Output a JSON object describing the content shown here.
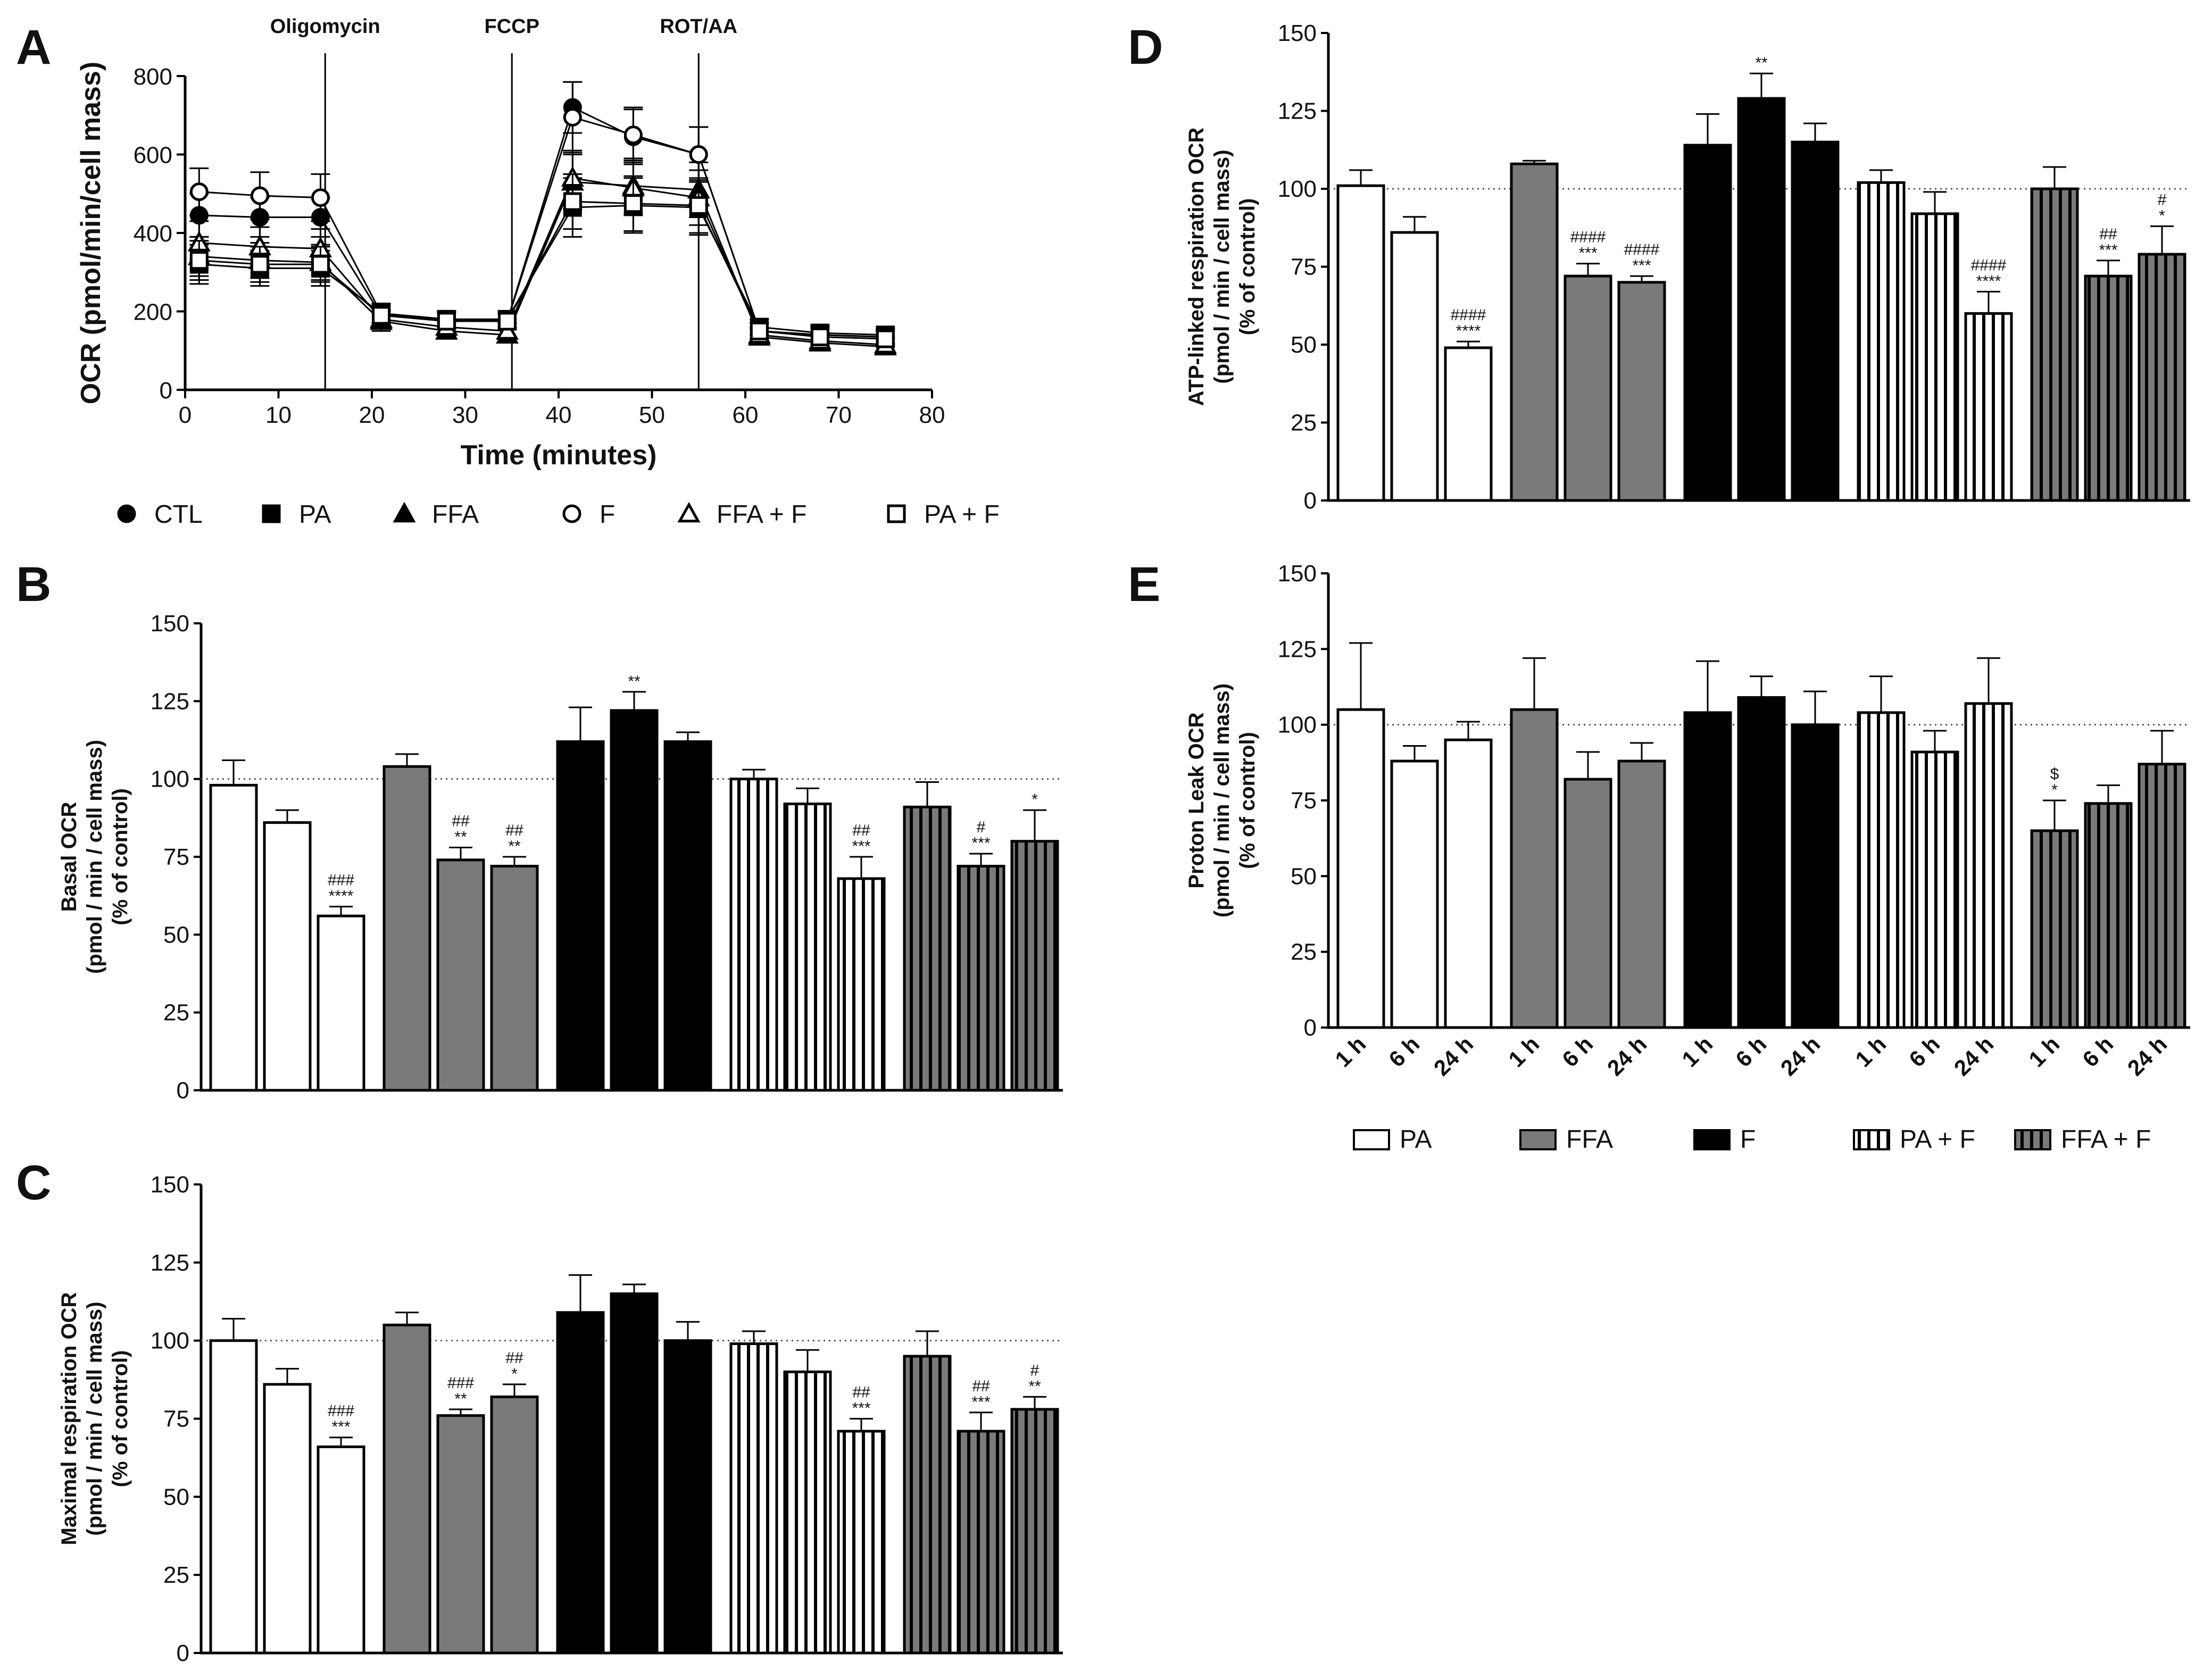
{
  "panel_letters": {
    "A": "A",
    "B": "B",
    "C": "C",
    "D": "D",
    "E": "E"
  },
  "colors": {
    "white": "#ffffff",
    "gray": "#7a7a7a",
    "black": "#000000",
    "axis": "#000000"
  },
  "chart_data": [
    {
      "id": "A",
      "type": "line",
      "xlabel": "Time (minutes)",
      "ylabel": "OCR (pmol/min/cell mass)",
      "xlim": [
        0,
        80
      ],
      "ylim": [
        0,
        800
      ],
      "xticks": [
        0,
        10,
        20,
        30,
        40,
        50,
        60,
        70,
        80
      ],
      "yticks": [
        0,
        200,
        400,
        600,
        800
      ],
      "injections": [
        {
          "label": "Oligomycin",
          "x": 15
        },
        {
          "label": "FCCP",
          "x": 35
        },
        {
          "label": "ROT/AA",
          "x": 55
        }
      ],
      "x": [
        1.5,
        8,
        14.5,
        21,
        28,
        34.5,
        41.5,
        48,
        55,
        61.5,
        68,
        75
      ],
      "series": [
        {
          "name": "CTL",
          "marker": "circle",
          "fill": "filled",
          "values": [
            445,
            440,
            440,
            190,
            180,
            175,
            720,
            645,
            600,
            150,
            140,
            135
          ],
          "err": [
            55,
            50,
            50,
            25,
            20,
            20,
            65,
            70,
            70,
            20,
            20,
            20
          ]
        },
        {
          "name": "PA",
          "marker": "square",
          "fill": "filled",
          "values": [
            320,
            310,
            310,
            195,
            180,
            180,
            465,
            470,
            465,
            160,
            145,
            140
          ],
          "err": [
            50,
            45,
            45,
            25,
            20,
            20,
            75,
            70,
            70,
            20,
            20,
            20
          ]
        },
        {
          "name": "FFA",
          "marker": "triangle",
          "fill": "filled",
          "values": [
            340,
            330,
            325,
            175,
            150,
            140,
            530,
            520,
            510,
            135,
            120,
            110
          ],
          "err": [
            50,
            45,
            45,
            25,
            20,
            20,
            70,
            70,
            70,
            20,
            20,
            20
          ]
        },
        {
          "name": "F",
          "marker": "circle",
          "fill": "open",
          "values": [
            505,
            495,
            490,
            195,
            180,
            175,
            695,
            650,
            600,
            150,
            140,
            135
          ],
          "err": [
            60,
            60,
            60,
            25,
            20,
            20,
            90,
            70,
            70,
            20,
            20,
            20
          ]
        },
        {
          "name": "FFA + F",
          "marker": "triangle",
          "fill": "open",
          "values": [
            375,
            365,
            360,
            180,
            160,
            150,
            540,
            515,
            490,
            140,
            125,
            115
          ],
          "err": [
            55,
            50,
            50,
            25,
            20,
            20,
            70,
            70,
            70,
            20,
            20,
            20
          ]
        },
        {
          "name": "PA + F",
          "marker": "square",
          "fill": "open",
          "values": [
            330,
            320,
            320,
            190,
            175,
            175,
            480,
            475,
            470,
            150,
            135,
            130
          ],
          "err": [
            50,
            45,
            45,
            25,
            20,
            20,
            70,
            70,
            70,
            20,
            20,
            20
          ]
        }
      ],
      "legend": [
        "CTL",
        "PA",
        "FFA",
        "F",
        "FFA + F",
        "PA + F"
      ]
    },
    {
      "id": "B",
      "type": "bar",
      "ylabel_lines": [
        "Basal OCR",
        "(pmol / min / cell mass)",
        "(% of control)"
      ],
      "ylim": [
        0,
        150
      ],
      "yticks": [
        0,
        25,
        50,
        75,
        100,
        125,
        150
      ],
      "reference_line": 100,
      "show_xlabels": false,
      "groups": [
        {
          "name": "PA",
          "style": "white",
          "values": [
            98,
            86,
            56
          ],
          "err": [
            8,
            4,
            3
          ],
          "sig": [
            [],
            [],
            [
              "###",
              "****"
            ]
          ]
        },
        {
          "name": "FFA",
          "style": "gray",
          "values": [
            104,
            74,
            72
          ],
          "err": [
            4,
            4,
            3
          ],
          "sig": [
            [],
            [
              "##",
              "**"
            ],
            [
              "##",
              "**"
            ]
          ]
        },
        {
          "name": "F",
          "style": "black",
          "values": [
            112,
            122,
            112
          ],
          "err": [
            11,
            6,
            3
          ],
          "sig": [
            [],
            [
              "**"
            ],
            []
          ]
        },
        {
          "name": "PA + F",
          "style": "white-striped",
          "values": [
            100,
            92,
            68
          ],
          "err": [
            3,
            5,
            7
          ],
          "sig": [
            [],
            [],
            [
              "##",
              "***"
            ]
          ]
        },
        {
          "name": "FFA + F",
          "style": "gray-striped",
          "values": [
            91,
            72,
            80
          ],
          "err": [
            8,
            4,
            10
          ],
          "sig": [
            [],
            [
              "#",
              "***"
            ],
            [
              "*"
            ]
          ]
        }
      ]
    },
    {
      "id": "C",
      "type": "bar",
      "ylabel_lines": [
        "Maximal respiration OCR",
        "(pmol / min / cell mass)",
        "(% of control)"
      ],
      "ylim": [
        0,
        150
      ],
      "yticks": [
        0,
        25,
        50,
        75,
        100,
        125,
        150
      ],
      "reference_line": 100,
      "show_xlabels": false,
      "groups": [
        {
          "name": "PA",
          "style": "white",
          "values": [
            100,
            86,
            66
          ],
          "err": [
            7,
            5,
            3
          ],
          "sig": [
            [],
            [],
            [
              "###",
              "***"
            ]
          ]
        },
        {
          "name": "FFA",
          "style": "gray",
          "values": [
            105,
            76,
            82
          ],
          "err": [
            4,
            2,
            4
          ],
          "sig": [
            [],
            [
              "###",
              "**"
            ],
            [
              "##",
              "*"
            ]
          ]
        },
        {
          "name": "F",
          "style": "black",
          "values": [
            109,
            115,
            100
          ],
          "err": [
            12,
            3,
            6
          ],
          "sig": [
            [],
            [],
            []
          ]
        },
        {
          "name": "PA + F",
          "style": "white-striped",
          "values": [
            99,
            90,
            71
          ],
          "err": [
            4,
            7,
            4
          ],
          "sig": [
            [],
            [],
            [
              "##",
              "***"
            ]
          ]
        },
        {
          "name": "FFA + F",
          "style": "gray-striped",
          "values": [
            95,
            71,
            78
          ],
          "err": [
            8,
            6,
            4
          ],
          "sig": [
            [],
            [
              "##",
              "***"
            ],
            [
              "#",
              "**"
            ]
          ]
        }
      ]
    },
    {
      "id": "D",
      "type": "bar",
      "ylabel_lines": [
        "ATP-linked respiration OCR",
        "(pmol / min / cell mass)",
        "(% of control)"
      ],
      "ylim": [
        0,
        150
      ],
      "yticks": [
        0,
        25,
        50,
        75,
        100,
        125,
        150
      ],
      "reference_line": 100,
      "show_xlabels": false,
      "groups": [
        {
          "name": "PA",
          "style": "white",
          "values": [
            101,
            86,
            49
          ],
          "err": [
            5,
            5,
            2
          ],
          "sig": [
            [],
            [],
            [
              "####",
              "****"
            ]
          ]
        },
        {
          "name": "FFA",
          "style": "gray",
          "values": [
            108,
            72,
            70
          ],
          "err": [
            1,
            4,
            2
          ],
          "sig": [
            [],
            [
              "####",
              "***"
            ],
            [
              "####",
              "***"
            ]
          ]
        },
        {
          "name": "F",
          "style": "black",
          "values": [
            114,
            129,
            115
          ],
          "err": [
            10,
            8,
            6
          ],
          "sig": [
            [],
            [
              "**"
            ],
            []
          ]
        },
        {
          "name": "PA + F",
          "style": "white-striped",
          "values": [
            102,
            92,
            60
          ],
          "err": [
            4,
            7,
            7
          ],
          "sig": [
            [],
            [],
            [
              "####",
              "****"
            ]
          ]
        },
        {
          "name": "FFA + F",
          "style": "gray-striped",
          "values": [
            100,
            72,
            79
          ],
          "err": [
            7,
            5,
            9
          ],
          "sig": [
            [],
            [
              "##",
              "***"
            ],
            [
              "#",
              "*"
            ]
          ]
        }
      ]
    },
    {
      "id": "E",
      "type": "bar",
      "ylabel_lines": [
        "Proton Leak OCR",
        "(pmol / min / cell mass)",
        "(% of control)"
      ],
      "ylim": [
        0,
        150
      ],
      "yticks": [
        0,
        25,
        50,
        75,
        100,
        125,
        150
      ],
      "reference_line": 100,
      "show_xlabels": true,
      "categories": [
        "1 h",
        "6 h",
        "24 h"
      ],
      "groups": [
        {
          "name": "PA",
          "style": "white",
          "values": [
            105,
            88,
            95
          ],
          "err": [
            22,
            5,
            6
          ],
          "sig": [
            [],
            [],
            []
          ]
        },
        {
          "name": "FFA",
          "style": "gray",
          "values": [
            105,
            82,
            88
          ],
          "err": [
            17,
            9,
            6
          ],
          "sig": [
            [],
            [],
            []
          ]
        },
        {
          "name": "F",
          "style": "black",
          "values": [
            104,
            109,
            100
          ],
          "err": [
            17,
            7,
            11
          ],
          "sig": [
            [],
            [],
            []
          ]
        },
        {
          "name": "PA + F",
          "style": "white-striped",
          "values": [
            104,
            91,
            107
          ],
          "err": [
            12,
            7,
            15
          ],
          "sig": [
            [],
            [],
            []
          ]
        },
        {
          "name": "FFA + F",
          "style": "gray-striped",
          "values": [
            65,
            74,
            87
          ],
          "err": [
            10,
            6,
            11
          ],
          "sig": [
            [
              "$",
              "*"
            ],
            [],
            []
          ]
        }
      ],
      "legend": [
        "PA",
        "FFA",
        "F",
        "PA + F",
        "FFA + F"
      ]
    }
  ]
}
